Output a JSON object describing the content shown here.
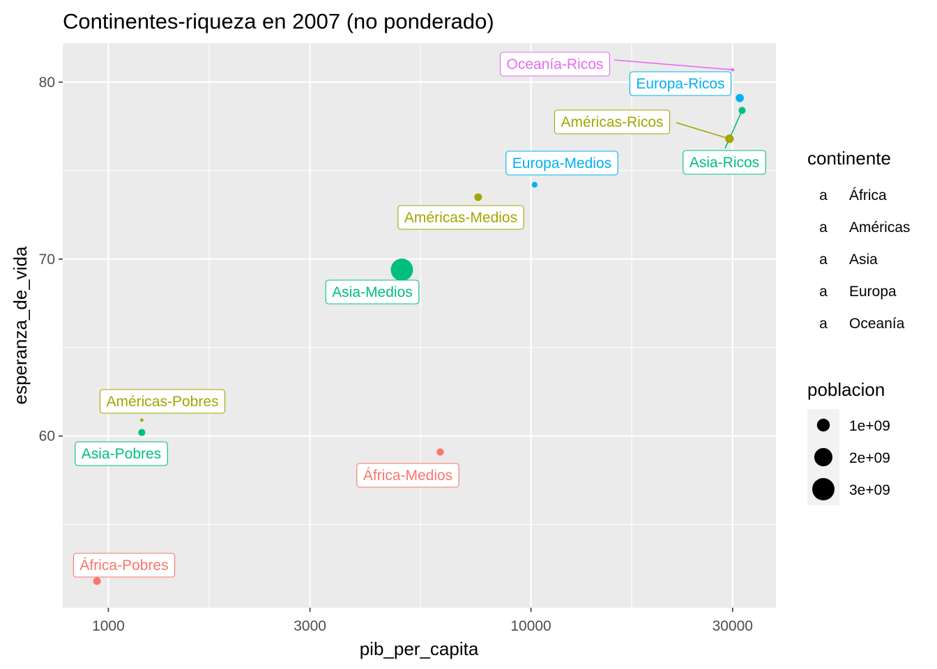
{
  "chart_data": {
    "type": "scatter",
    "title": "Continentes-riqueza en 2007 (no ponderado)",
    "xlabel": "pib_per_capita",
    "ylabel": "esperanza_de_vida",
    "x_scale": "log10",
    "xlim": [
      780,
      38000
    ],
    "ylim": [
      50.3,
      82.2
    ],
    "x_ticks": [
      1000,
      3000,
      10000,
      30000
    ],
    "x_tick_labels": [
      "1000",
      "3000",
      "10000",
      "30000"
    ],
    "x_minor_ticks": [
      1732,
      5477,
      17321
    ],
    "y_ticks": [
      60,
      70,
      80
    ],
    "y_tick_labels": [
      "60",
      "70",
      "80"
    ],
    "y_minor_ticks": [
      55,
      65,
      75
    ],
    "grid": true,
    "legend_position": "right",
    "continent_legend": {
      "title": "continente",
      "glyph": "a",
      "entries": [
        {
          "name": "África",
          "color": "#F8766D"
        },
        {
          "name": "Américas",
          "color": "#A3A500"
        },
        {
          "name": "Asia",
          "color": "#00BF7D"
        },
        {
          "name": "Europa",
          "color": "#00B0F6"
        },
        {
          "name": "Oceanía",
          "color": "#E76BF3"
        }
      ]
    },
    "size_legend": {
      "title": "poblacion",
      "entries": [
        {
          "label": "1e+09",
          "value": 1000000000
        },
        {
          "label": "2e+09",
          "value": 2000000000
        },
        {
          "label": "3e+09",
          "value": 3000000000
        }
      ]
    },
    "points": [
      {
        "label": "África-Pobres",
        "continente": "África",
        "x": 940,
        "y": 51.8,
        "poblacion": 350000000
      },
      {
        "label": "África-Medios",
        "continente": "África",
        "x": 6100,
        "y": 59.1,
        "poblacion": 320000000
      },
      {
        "label": "Américas-Pobres",
        "continente": "Américas",
        "x": 1200,
        "y": 60.9,
        "poblacion": 9000000
      },
      {
        "label": "Américas-Medios",
        "continente": "Américas",
        "x": 7500,
        "y": 73.5,
        "poblacion": 350000000
      },
      {
        "label": "Américas-Ricos",
        "continente": "Américas",
        "x": 29500,
        "y": 76.8,
        "poblacion": 450000000
      },
      {
        "label": "Asia-Pobres",
        "continente": "Asia",
        "x": 1200,
        "y": 60.2,
        "poblacion": 300000000
      },
      {
        "label": "Asia-Medios",
        "continente": "Asia",
        "x": 4950,
        "y": 69.4,
        "poblacion": 3000000000
      },
      {
        "label": "Asia-Ricos",
        "continente": "Asia",
        "x": 31600,
        "y": 78.4,
        "poblacion": 300000000
      },
      {
        "label": "Europa-Medios",
        "continente": "Europa",
        "x": 10200,
        "y": 74.2,
        "poblacion": 200000000
      },
      {
        "label": "Europa-Ricos",
        "continente": "Europa",
        "x": 31200,
        "y": 79.1,
        "poblacion": 400000000
      },
      {
        "label": "Oceanía-Ricos",
        "continente": "Oceanía",
        "x": 30000,
        "y": 80.7,
        "poblacion": 24000000
      }
    ]
  }
}
